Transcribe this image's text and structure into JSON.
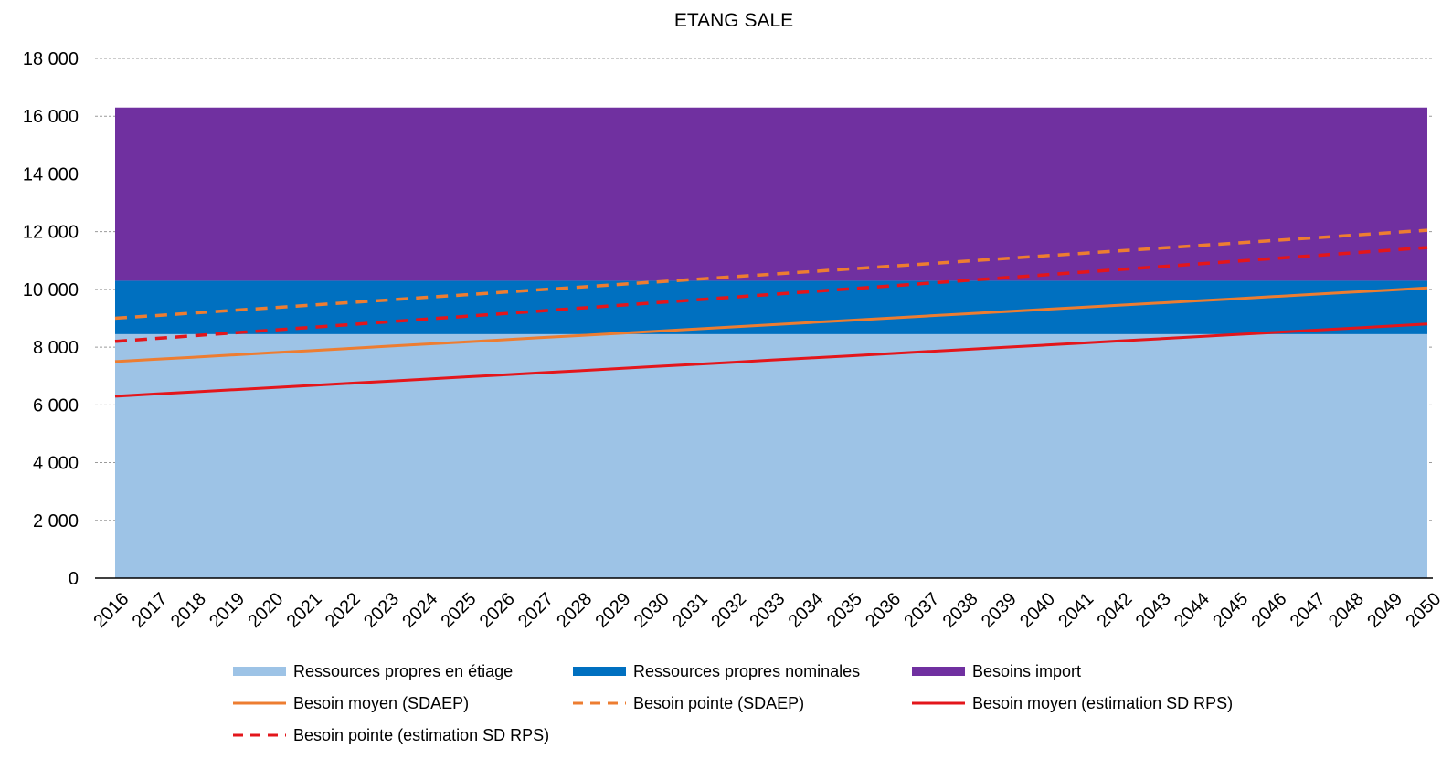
{
  "chart_data": {
    "type": "area",
    "title": "ETANG SALE",
    "xlabel": "",
    "ylabel": "",
    "ylim": [
      0,
      18000
    ],
    "yticks": [
      0,
      2000,
      4000,
      6000,
      8000,
      10000,
      12000,
      14000,
      16000,
      18000
    ],
    "ytick_labels": [
      "0",
      "2 000",
      "4 000",
      "6 000",
      "8 000",
      "10 000",
      "12 000",
      "14 000",
      "16 000",
      "18 000"
    ],
    "grid": "horizontal dashed",
    "legend_position": "bottom",
    "x": [
      "2016",
      "2017",
      "2018",
      "2019",
      "2020",
      "2021",
      "2022",
      "2023",
      "2024",
      "2025",
      "2026",
      "2027",
      "2028",
      "2029",
      "2030",
      "2031",
      "2032",
      "2033",
      "2034",
      "2035",
      "2036",
      "2037",
      "2038",
      "2039",
      "2040",
      "2041",
      "2042",
      "2043",
      "2044",
      "2045",
      "2046",
      "2047",
      "2048",
      "2049",
      "2050"
    ],
    "stacked_areas": [
      {
        "name": "Ressources propres en étiage",
        "color": "#9DC3E6",
        "value": 8450
      },
      {
        "name": "Ressources propres nominales",
        "color": "#0070C0",
        "value": 1850
      },
      {
        "name": "Besoins import",
        "color": "#7030A0",
        "value": 6000
      }
    ],
    "lines": [
      {
        "name": "Besoin moyen (SDAEP)",
        "color": "#ED7D31",
        "style": "solid",
        "start": 7500,
        "end": 10050
      },
      {
        "name": "Besoin pointe (SDAEP)",
        "color": "#ED7D31",
        "style": "dashed",
        "start": 9000,
        "end": 12050
      },
      {
        "name": "Besoin moyen (estimation SD RPS)",
        "color": "#E3161B",
        "style": "solid",
        "start": 6300,
        "end": 8800
      },
      {
        "name": "Besoin pointe (estimation SD RPS)",
        "color": "#E3161B",
        "style": "dashed",
        "start": 8200,
        "end": 11450
      }
    ]
  }
}
